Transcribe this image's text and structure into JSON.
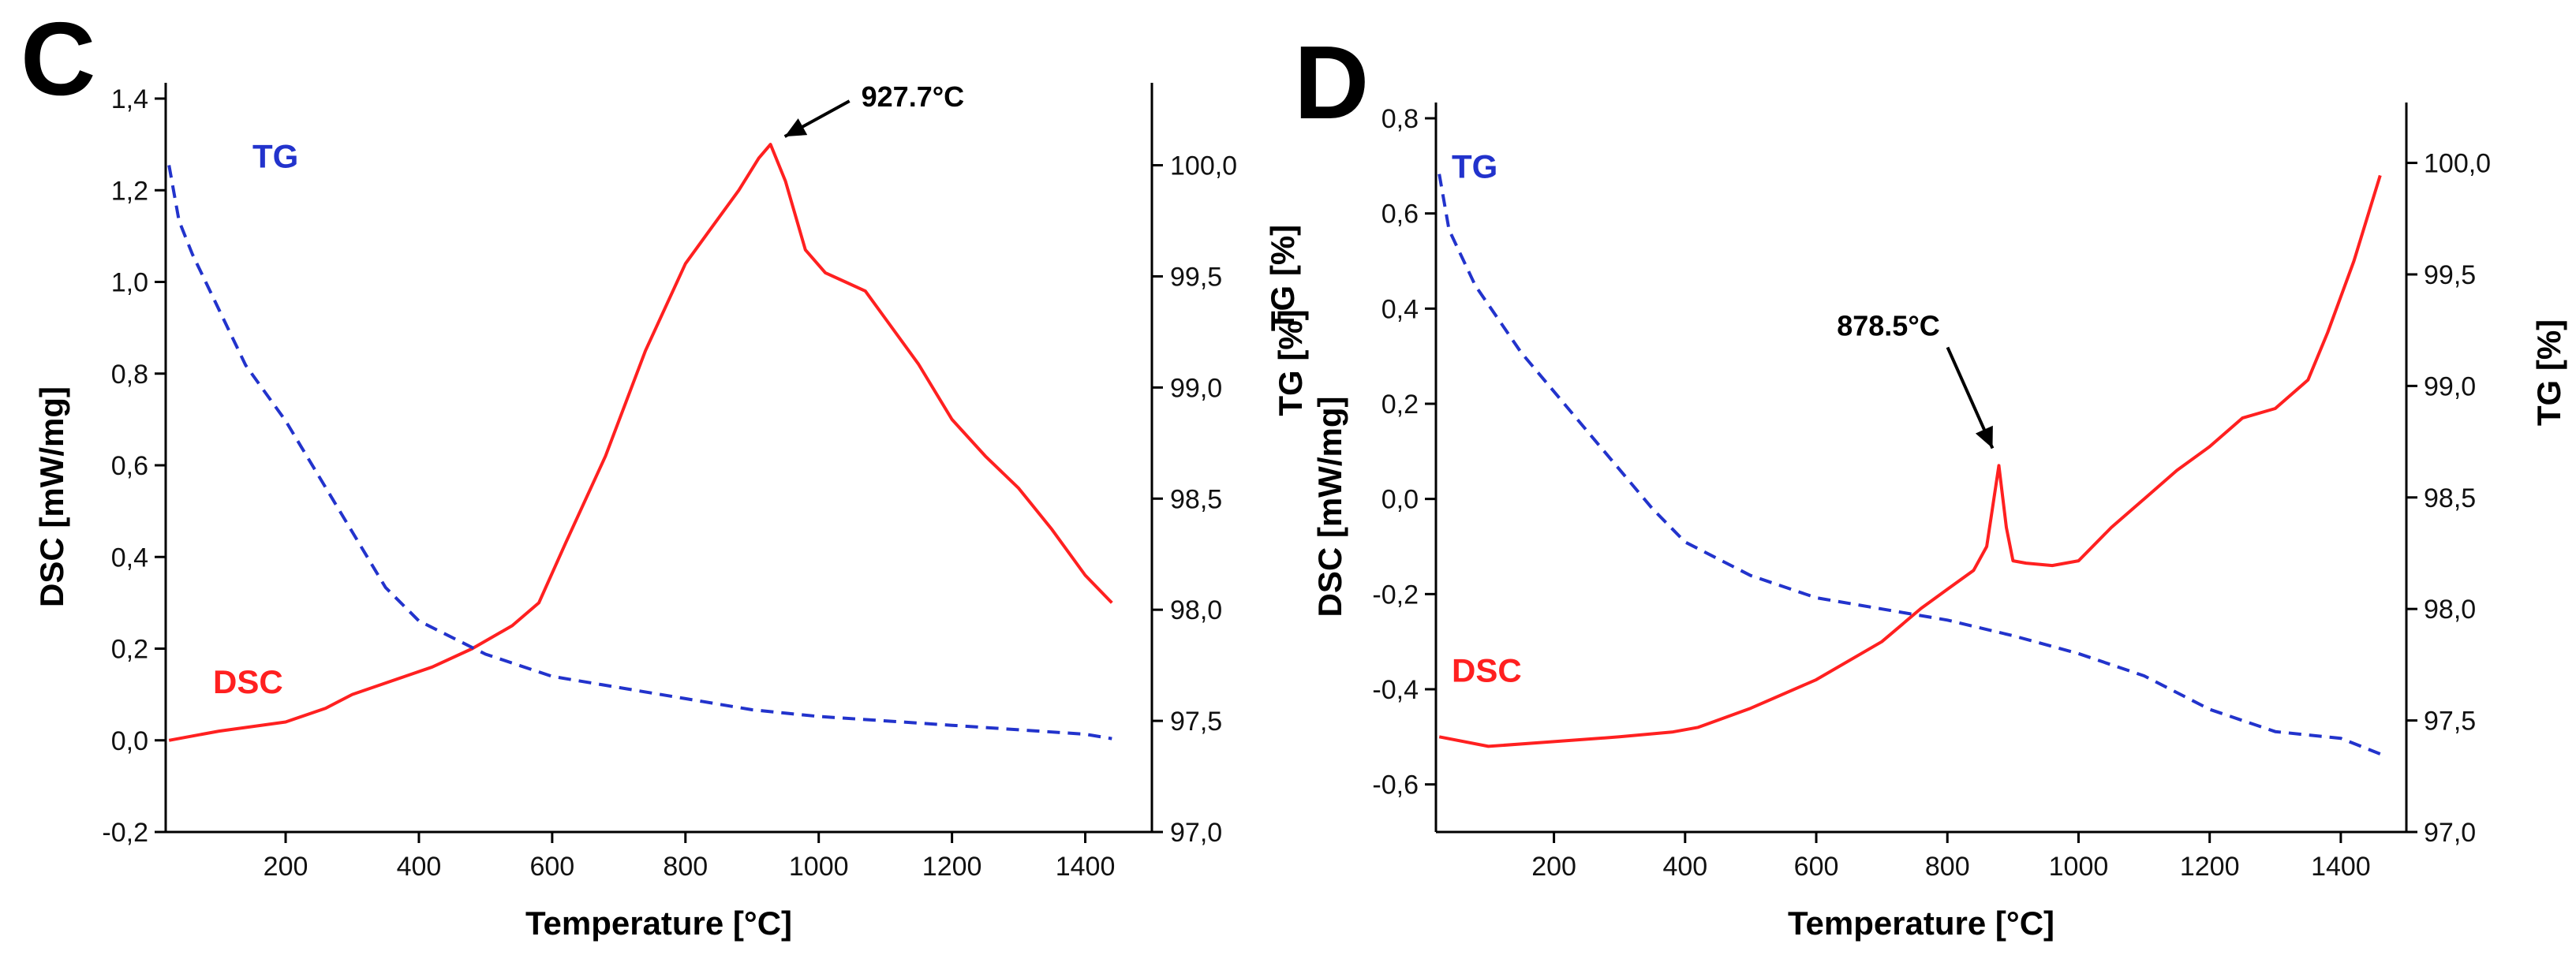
{
  "chart_data": [
    {
      "type": "line",
      "panel": "C",
      "xlabel": "Temperature [°C]",
      "ylabel": "DSC [mW/mg]",
      "ylabel_right": "TG [%]",
      "xlim": [
        20,
        1500
      ],
      "ylim": [
        -0.2,
        1.4
      ],
      "ylim_right": [
        97.0,
        100.3
      ],
      "x_ticks": [
        200,
        400,
        600,
        800,
        1000,
        1200,
        1400
      ],
      "y_ticks": [
        "-0,2",
        "0,0",
        "0,2",
        "0,4",
        "0,6",
        "0,8",
        "1,0",
        "1,2",
        "1,4"
      ],
      "y_ticks_right": [
        "97,0",
        "97,5",
        "98,0",
        "98,5",
        "99,0",
        "99,5",
        "100,0"
      ],
      "series": [
        {
          "name": "DSC",
          "axis": "left",
          "color": "#ff2020",
          "style": "solid",
          "x": [
            25,
            100,
            200,
            260,
            300,
            340,
            380,
            420,
            480,
            540,
            580,
            620,
            680,
            740,
            800,
            840,
            880,
            910,
            927.7,
            950,
            980,
            1010,
            1040,
            1070,
            1100,
            1150,
            1200,
            1250,
            1300,
            1350,
            1400,
            1440
          ],
          "y": [
            0.0,
            0.02,
            0.04,
            0.07,
            0.1,
            0.12,
            0.14,
            0.16,
            0.2,
            0.25,
            0.3,
            0.43,
            0.62,
            0.85,
            1.04,
            1.12,
            1.2,
            1.27,
            1.3,
            1.22,
            1.07,
            1.02,
            1.0,
            0.98,
            0.92,
            0.82,
            0.7,
            0.62,
            0.55,
            0.46,
            0.36,
            0.3
          ]
        },
        {
          "name": "TG",
          "axis": "right",
          "color": "#2233cc",
          "style": "dashed",
          "x": [
            25,
            40,
            60,
            100,
            140,
            200,
            250,
            300,
            350,
            400,
            500,
            600,
            700,
            800,
            900,
            1000,
            1100,
            1200,
            1300,
            1400,
            1440
          ],
          "y": [
            100.0,
            99.75,
            99.6,
            99.35,
            99.1,
            98.85,
            98.6,
            98.35,
            98.1,
            97.95,
            97.8,
            97.7,
            97.65,
            97.6,
            97.55,
            97.52,
            97.5,
            97.48,
            97.46,
            97.44,
            97.42
          ]
        }
      ],
      "legend": [
        {
          "text": "TG",
          "color": "#2233cc"
        },
        {
          "text": "DSC",
          "color": "#ff2020"
        }
      ],
      "annotation": {
        "text": "927.7°C",
        "x": 927.7,
        "y": 1.3
      }
    },
    {
      "type": "line",
      "panel": "D",
      "xlabel": "Temperature [°C]",
      "ylabel": "DSC [mW/mg]",
      "ylabel_extra": "TG [%]",
      "ylabel_right": "TG [%]",
      "xlim": [
        20,
        1500
      ],
      "ylim": [
        -0.7,
        0.8
      ],
      "ylim_right": [
        97.0,
        100.2
      ],
      "x_ticks": [
        200,
        400,
        600,
        800,
        1000,
        1200,
        1400
      ],
      "y_ticks": [
        "-0,6",
        "-0,4",
        "-0,2",
        "0,0",
        "0,2",
        "0,4",
        "0,6",
        "0,8"
      ],
      "y_ticks_right": [
        "97,0",
        "97,5",
        "98,0",
        "98,5",
        "99,0",
        "99,5",
        "100,0"
      ],
      "series": [
        {
          "name": "DSC",
          "axis": "left",
          "color": "#ff2020",
          "style": "solid",
          "x": [
            25,
            100,
            200,
            300,
            380,
            420,
            500,
            600,
            700,
            760,
            800,
            840,
            860,
            878.5,
            890,
            900,
            920,
            960,
            1000,
            1050,
            1100,
            1150,
            1200,
            1250,
            1300,
            1350,
            1380,
            1420,
            1460
          ],
          "y": [
            -0.5,
            -0.52,
            -0.51,
            -0.5,
            -0.49,
            -0.48,
            -0.44,
            -0.38,
            -0.3,
            -0.23,
            -0.19,
            -0.15,
            -0.1,
            0.07,
            -0.06,
            -0.13,
            -0.135,
            -0.14,
            -0.13,
            -0.06,
            0.0,
            0.06,
            0.11,
            0.17,
            0.19,
            0.25,
            0.35,
            0.5,
            0.68
          ]
        },
        {
          "name": "TG",
          "axis": "right",
          "color": "#2233cc",
          "style": "dashed",
          "x": [
            25,
            40,
            80,
            150,
            250,
            350,
            400,
            500,
            600,
            700,
            800,
            900,
            1000,
            1100,
            1200,
            1300,
            1400,
            1460
          ],
          "y": [
            99.95,
            99.7,
            99.45,
            99.15,
            98.8,
            98.45,
            98.3,
            98.15,
            98.05,
            98.0,
            97.95,
            97.88,
            97.8,
            97.7,
            97.55,
            97.45,
            97.42,
            97.35
          ]
        }
      ],
      "legend": [
        {
          "text": "TG",
          "color": "#2233cc"
        },
        {
          "text": "DSC",
          "color": "#ff2020"
        }
      ],
      "annotation": {
        "text": "878.5°C",
        "x": 878.5,
        "y": 0.07
      }
    }
  ]
}
